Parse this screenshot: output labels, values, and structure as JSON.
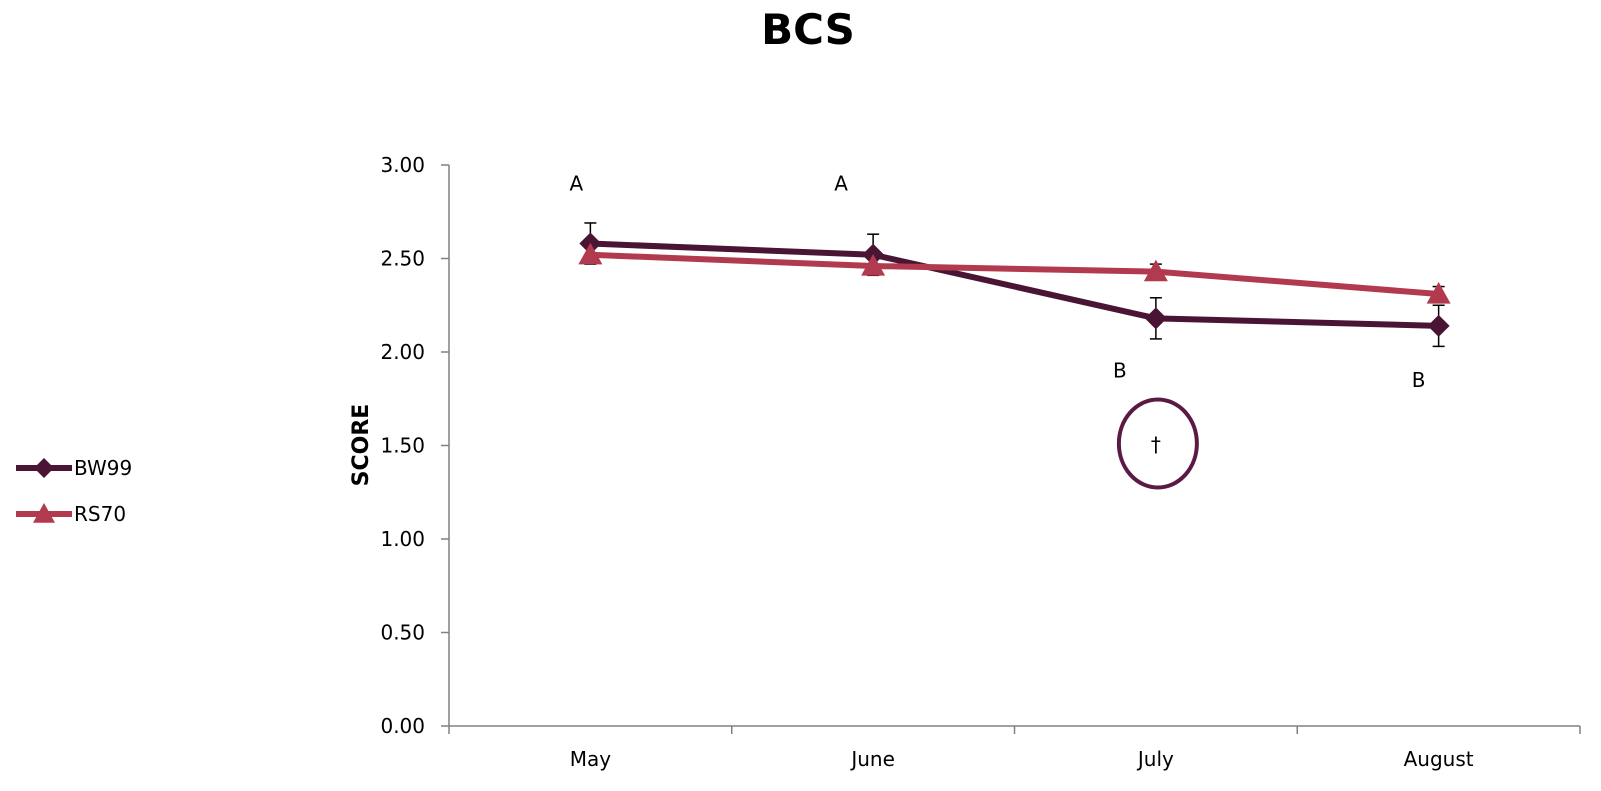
{
  "chart_data": {
    "type": "line",
    "title": "BCS",
    "xlabel": "",
    "ylabel": "SCORE",
    "categories": [
      "May",
      "June",
      "July",
      "August"
    ],
    "ylim": [
      0,
      3
    ],
    "yticks": [
      "0.00",
      "0.50",
      "1.00",
      "1.50",
      "2.00",
      "2.50",
      "3.00"
    ],
    "series": [
      {
        "name": "BW99",
        "values": [
          2.58,
          2.52,
          2.18,
          2.14
        ],
        "error": [
          0.11,
          0.11,
          0.11,
          0.11
        ],
        "color": "#4A1535",
        "marker": "diamond"
      },
      {
        "name": "RS70",
        "values": [
          2.52,
          2.46,
          2.43,
          2.31
        ],
        "error": [
          0.0,
          0.0,
          0.04,
          0.04
        ],
        "color": "#B23A4E",
        "marker": "triangle"
      }
    ],
    "annotations": [
      {
        "text": "A",
        "category": "May",
        "value": 2.9
      },
      {
        "text": "A",
        "category": "June",
        "value": 2.9
      },
      {
        "text": "B",
        "category": "July",
        "value": 1.9
      },
      {
        "text": "B",
        "category": "August",
        "value": 1.85
      },
      {
        "text": "†",
        "category": "July",
        "value": 1.5,
        "circled": true
      }
    ],
    "legend_position": "left",
    "grid": false
  }
}
